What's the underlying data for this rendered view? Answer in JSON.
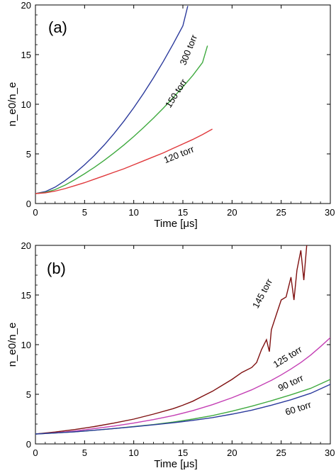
{
  "chart_data": [
    {
      "type": "line",
      "panel_label": "(a)",
      "xlabel": "Time [μs]",
      "ylabel": "n_e0/n_e",
      "xlim": [
        0,
        30
      ],
      "ylim": [
        0,
        20
      ],
      "xticks": [
        "0",
        "5",
        "10",
        "15",
        "20",
        "25",
        "30"
      ],
      "yticks": [
        "0",
        "5",
        "10",
        "15",
        "20"
      ],
      "grid": false,
      "legend": "none (inline curve labels)",
      "series": [
        {
          "name": "300 torr",
          "color": "#2b3a9c",
          "x": [
            0,
            1,
            2,
            3,
            4,
            5,
            6,
            7,
            8,
            9,
            10,
            11,
            12,
            13,
            14,
            15,
            15.5
          ],
          "y": [
            1.0,
            1.2,
            1.65,
            2.3,
            3.05,
            3.9,
            4.85,
            5.9,
            7.05,
            8.3,
            9.65,
            11.1,
            12.65,
            14.3,
            16.05,
            17.9,
            19.9
          ]
        },
        {
          "name": "150 torr",
          "color": "#3faa3f",
          "x": [
            0,
            1,
            2,
            3,
            4,
            5,
            6,
            7,
            8,
            9,
            10,
            11,
            12,
            13,
            14,
            15,
            16,
            17,
            17.5
          ],
          "y": [
            1.0,
            1.12,
            1.4,
            1.85,
            2.4,
            3.0,
            3.65,
            4.35,
            5.1,
            5.9,
            6.75,
            7.65,
            8.6,
            9.6,
            10.65,
            11.75,
            12.9,
            14.2,
            15.9
          ]
        },
        {
          "name": "120 torr",
          "color": "#e0393c",
          "x": [
            0,
            1,
            2,
            3,
            4,
            5,
            6,
            7,
            8,
            9,
            10,
            11,
            12,
            13,
            14,
            15,
            16,
            17,
            18
          ],
          "y": [
            1.0,
            1.08,
            1.25,
            1.5,
            1.8,
            2.1,
            2.45,
            2.8,
            3.15,
            3.5,
            3.9,
            4.3,
            4.7,
            5.1,
            5.55,
            6.0,
            6.45,
            6.95,
            7.5
          ]
        }
      ]
    },
    {
      "type": "line",
      "panel_label": "(b)",
      "xlabel": "Time [μs]",
      "ylabel": "n_e0/n_e",
      "xlim": [
        0,
        30
      ],
      "ylim": [
        0,
        20
      ],
      "xticks": [
        "0",
        "5",
        "10",
        "15",
        "20",
        "25",
        "30"
      ],
      "yticks": [
        "0",
        "5",
        "10",
        "15",
        "20"
      ],
      "grid": false,
      "legend": "none (inline curve labels)",
      "series": [
        {
          "name": "145 torr",
          "color": "#7f1010",
          "x": [
            0,
            2,
            4,
            6,
            8,
            10,
            12,
            14,
            15,
            16,
            17,
            18,
            19,
            20,
            21,
            22,
            22.5,
            23,
            23.5,
            23.8,
            24,
            24.5,
            25,
            25.5,
            26,
            26.3,
            26.6,
            27,
            27.3,
            27.6
          ],
          "y": [
            1.0,
            1.2,
            1.45,
            1.75,
            2.1,
            2.5,
            3.0,
            3.55,
            3.9,
            4.3,
            4.8,
            5.3,
            5.9,
            6.5,
            7.2,
            7.7,
            8.2,
            9.5,
            10.5,
            9.3,
            11.5,
            13.0,
            14.5,
            14.8,
            16.8,
            14.5,
            17.5,
            19.5,
            16.5,
            20.0
          ]
        },
        {
          "name": "125 torr",
          "color": "#c43fb4",
          "x": [
            0,
            2,
            4,
            6,
            8,
            10,
            12,
            14,
            16,
            18,
            20,
            22,
            24,
            25,
            26,
            27,
            28,
            29,
            30
          ],
          "y": [
            1.0,
            1.12,
            1.3,
            1.55,
            1.8,
            2.1,
            2.45,
            2.85,
            3.35,
            3.95,
            4.65,
            5.45,
            6.4,
            6.95,
            7.55,
            8.2,
            8.95,
            9.8,
            10.7
          ]
        },
        {
          "name": "90 torr",
          "color": "#3faa3f",
          "x": [
            0,
            2,
            4,
            6,
            8,
            10,
            12,
            14,
            16,
            18,
            20,
            22,
            24,
            26,
            28,
            30
          ],
          "y": [
            1.0,
            1.1,
            1.22,
            1.38,
            1.55,
            1.75,
            1.95,
            2.2,
            2.5,
            2.85,
            3.3,
            3.8,
            4.35,
            4.95,
            5.6,
            6.5
          ]
        },
        {
          "name": "60 torr",
          "color": "#2b3a9c",
          "x": [
            0,
            2,
            4,
            6,
            8,
            10,
            12,
            14,
            16,
            18,
            20,
            22,
            24,
            26,
            28,
            30
          ],
          "y": [
            1.0,
            1.1,
            1.22,
            1.38,
            1.55,
            1.73,
            1.92,
            2.13,
            2.37,
            2.65,
            3.0,
            3.4,
            3.9,
            4.45,
            5.1,
            6.0
          ]
        }
      ]
    }
  ]
}
